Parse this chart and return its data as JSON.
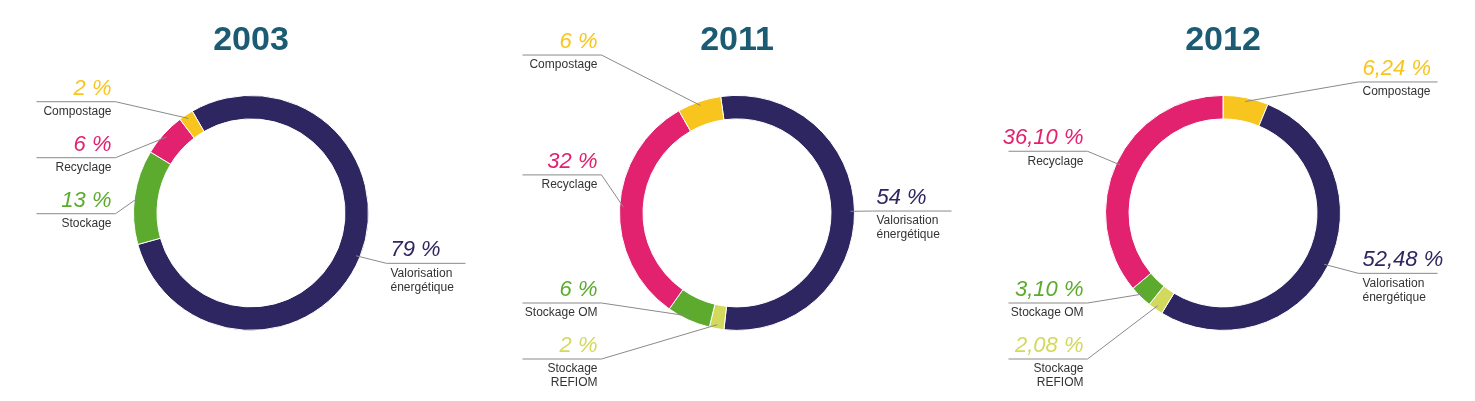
{
  "chart_data": [
    {
      "type": "donut",
      "title": "2003",
      "categories": [
        "Valorisation énergétique",
        "Stockage",
        "Recyclage",
        "Compostage"
      ],
      "values": [
        79,
        13,
        6,
        2
      ],
      "value_labels": [
        "79 %",
        "13 %",
        "6 %",
        "2 %"
      ],
      "colors": [
        "#2e2661",
        "#5cab2f",
        "#e2216f",
        "#f7c51e"
      ],
      "legend": false
    },
    {
      "type": "donut",
      "title": "2011",
      "categories": [
        "Valorisation énergétique",
        "Stockage REFIOM",
        "Stockage OM",
        "Recyclage",
        "Compostage"
      ],
      "values": [
        54,
        2,
        6,
        32,
        6
      ],
      "value_labels": [
        "54 %",
        "2 %",
        "6 %",
        "32 %",
        "6 %"
      ],
      "colors": [
        "#2e2661",
        "#d3d95c",
        "#5cab2f",
        "#e2216f",
        "#f7c51e"
      ],
      "legend": false
    },
    {
      "type": "donut",
      "title": "2012",
      "categories": [
        "Compostage",
        "Valorisation énergétique",
        "Stockage REFIOM",
        "Stockage OM",
        "Recyclage"
      ],
      "values": [
        6.24,
        52.48,
        2.08,
        3.1,
        36.1
      ],
      "value_labels": [
        "6,24 %",
        "52,48 %",
        "2,08 %",
        "3,10 %",
        "36,10 %"
      ],
      "colors": [
        "#f7c51e",
        "#2e2661",
        "#d3d95c",
        "#5cab2f",
        "#e2216f"
      ],
      "legend": false
    }
  ]
}
